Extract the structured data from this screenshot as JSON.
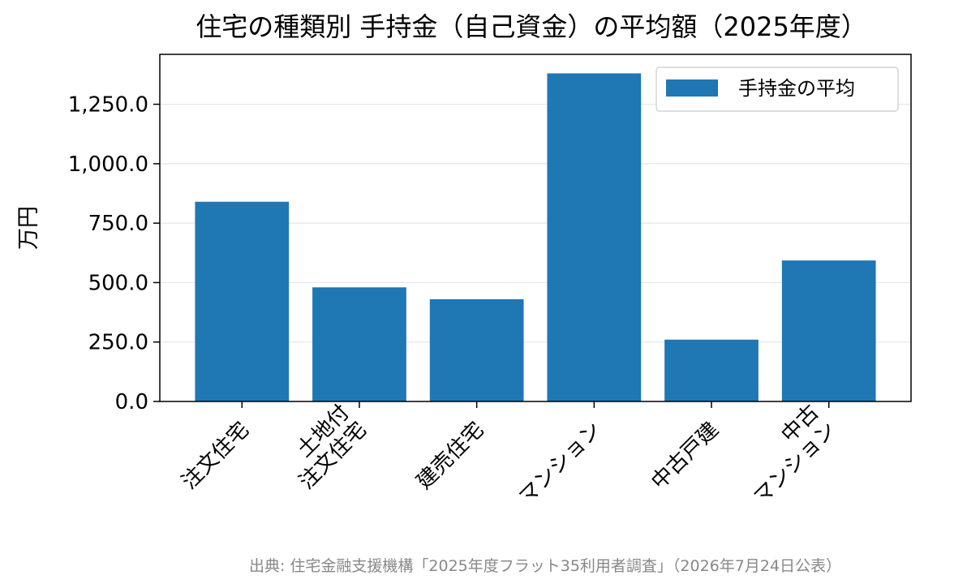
{
  "chart_data": {
    "type": "bar",
    "title": "住宅の種類別 手持金（自己資金）の平均額（2025年度）",
    "xlabel": "",
    "ylabel": "万円",
    "categories": [
      [
        "注文住宅"
      ],
      [
        "土地付",
        "注文住宅"
      ],
      [
        "建売住宅"
      ],
      [
        "マンション"
      ],
      [
        "中古戸建"
      ],
      [
        "中古",
        "マンション"
      ]
    ],
    "series": [
      {
        "name": "手持金の平均",
        "values": [
          840,
          480,
          430,
          1380,
          260,
          593
        ],
        "color": "#1f77b4"
      }
    ],
    "ylim": [
      0,
      1460
    ],
    "yticks": [
      0,
      250,
      500,
      750,
      1000,
      1250
    ],
    "ytick_labels": [
      "0.0",
      "250.0",
      "500.0",
      "750.0",
      "1,000.0",
      "1,250.0"
    ],
    "grid": "y",
    "legend_position": "top-right"
  },
  "source_note": "出典: 住宅金融支援機構「2025年度フラット35利用者調査」（2026年7月24日公表）"
}
